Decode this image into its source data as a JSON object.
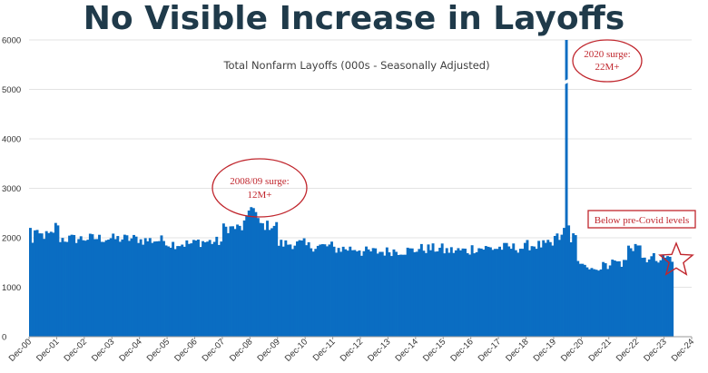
{
  "title": "No Visible Increase in Layoffs",
  "colors": {
    "bar": "#0a6dc2",
    "grid": "#e3e3e3",
    "accent": "#c0262d",
    "title": "#1f3a4a"
  },
  "chart_data": {
    "type": "bar",
    "title": "Total Nonfarm Layoffs (000s - Seasonally Adjusted)",
    "xlabel": "",
    "ylabel": "",
    "ylim": [
      0,
      6000
    ],
    "grid": true,
    "yticks": [
      0,
      1000,
      2000,
      3000,
      4000,
      5000,
      6000
    ],
    "x_tick_labels": [
      "Dec-00",
      "Dec-01",
      "Dec-02",
      "Dec-03",
      "Dec-04",
      "Dec-05",
      "Dec-06",
      "Dec-07",
      "Dec-08",
      "Dec-09",
      "Dec-10",
      "Dec-11",
      "Dec-12",
      "Dec-13",
      "Dec-14",
      "Dec-15",
      "Dec-16",
      "Dec-17",
      "Dec-18",
      "Dec-19",
      "Dec-20",
      "Dec-21",
      "Dec-22",
      "Dec-23",
      "Dec-24"
    ],
    "start_month": "Dec-00",
    "annual_levels": [
      {
        "year": "2001",
        "value": 2050
      },
      {
        "year": "2002",
        "value": 1980
      },
      {
        "year": "2003",
        "value": 1990
      },
      {
        "year": "2004",
        "value": 1980
      },
      {
        "year": "2005",
        "value": 1950
      },
      {
        "year": "2006",
        "value": 1880
      },
      {
        "year": "2007",
        "value": 1920
      },
      {
        "year": "2008",
        "value": 2200
      },
      {
        "year": "2009",
        "value": 2250
      },
      {
        "year": "2010",
        "value": 1880
      },
      {
        "year": "2011",
        "value": 1830
      },
      {
        "year": "2012",
        "value": 1780
      },
      {
        "year": "2013",
        "value": 1720
      },
      {
        "year": "2014",
        "value": 1740
      },
      {
        "year": "2015",
        "value": 1780
      },
      {
        "year": "2016",
        "value": 1740
      },
      {
        "year": "2017",
        "value": 1790
      },
      {
        "year": "2018",
        "value": 1800
      },
      {
        "year": "2019",
        "value": 1850
      },
      {
        "year": "2020",
        "value": 2000
      },
      {
        "year": "2021",
        "value": 1420
      },
      {
        "year": "2022",
        "value": 1480
      },
      {
        "year": "2023",
        "value": 1600
      },
      {
        "year": "2024",
        "value": 1600
      }
    ],
    "spikes": [
      {
        "month_index": 232,
        "value": 2200
      },
      {
        "month_index": 233,
        "value": 6000,
        "truncated": true,
        "actual": "22M+"
      },
      {
        "month_index": 234,
        "value": 2250
      }
    ],
    "annotations": {
      "gfc": "2008/09 surge:\n12M+",
      "covid": "2020 surge:\n22M+",
      "recent": "Below pre-Covid levels"
    }
  }
}
